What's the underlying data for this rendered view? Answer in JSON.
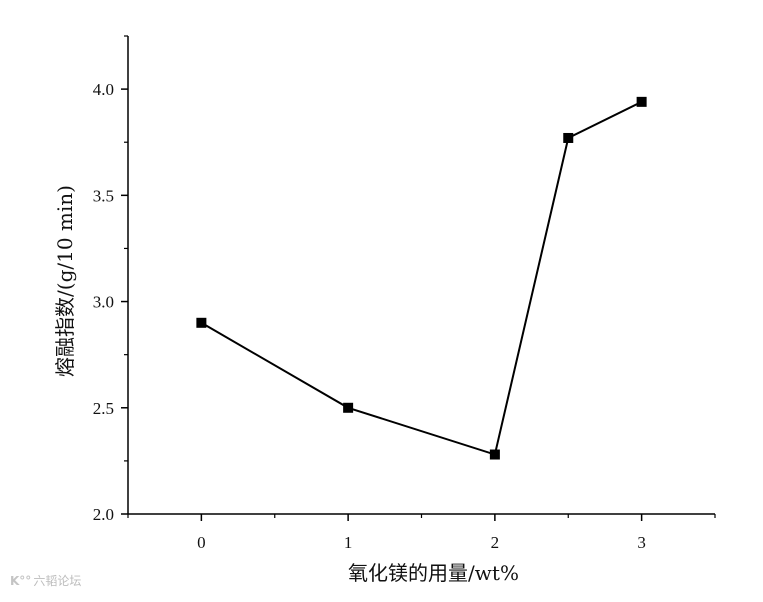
{
  "chart_data": {
    "type": "line",
    "title": "",
    "xlabel": "氧化镁的用量/wt%",
    "ylabel": "熔融指数/(g/10 min)",
    "xlim": [
      -0.5,
      3.5
    ],
    "ylim": [
      2.0,
      4.25
    ],
    "x_ticks": [
      0,
      1,
      2,
      3
    ],
    "x_tick_labels": [
      "0",
      "1",
      "2",
      "3"
    ],
    "y_ticks": [
      2.0,
      2.5,
      3.0,
      3.5,
      4.0
    ],
    "y_tick_labels": [
      "2.0",
      "2.5",
      "3.0",
      "3.5",
      "4.0"
    ],
    "grid": false,
    "legend": "none",
    "marker": "square",
    "color": "#000000",
    "series": [
      {
        "x": [
          0,
          1,
          2,
          2.5,
          3
        ],
        "y": [
          2.9,
          2.5,
          2.28,
          3.77,
          3.94
        ]
      }
    ]
  },
  "watermark": {
    "logo": "K°°",
    "text": "六韬论坛"
  }
}
